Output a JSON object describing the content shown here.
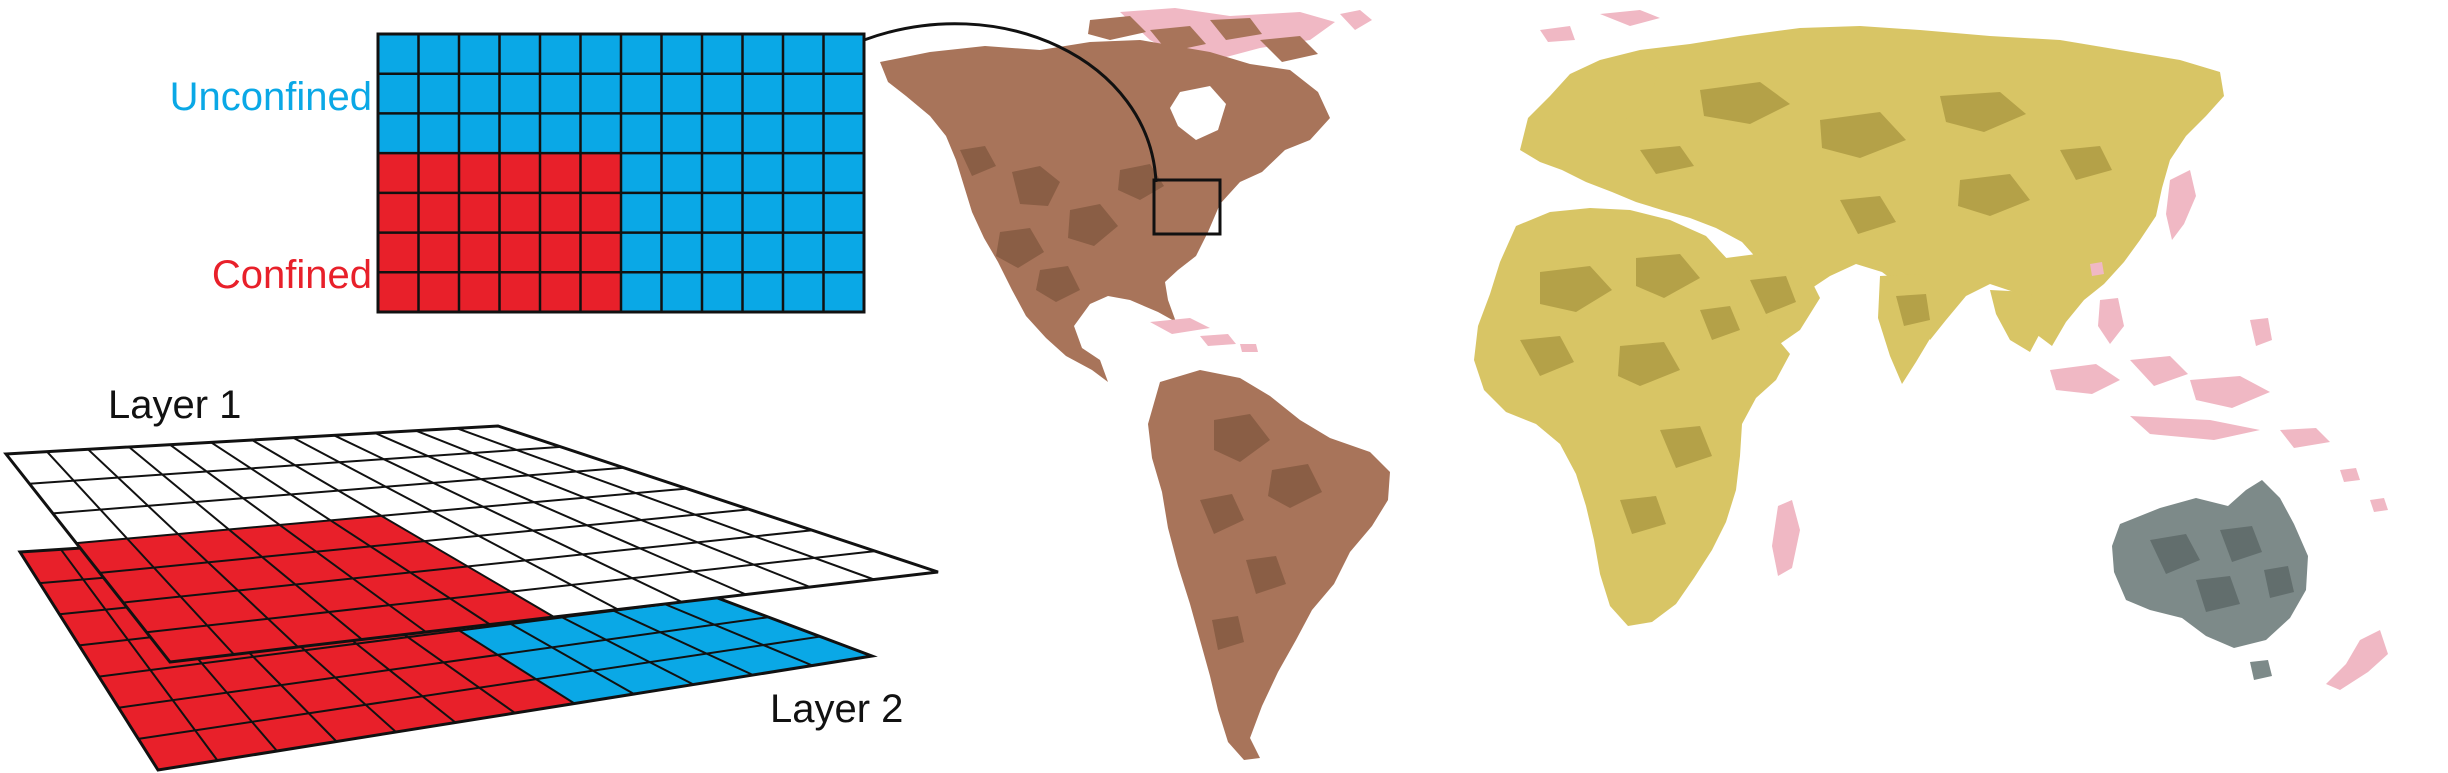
{
  "labels": {
    "unconfined": "Unconfined",
    "confined": "Confined",
    "layer1": "Layer 1",
    "layer2": "Layer 2"
  },
  "colors": {
    "unconfined": "#0aa8e6",
    "confined": "#e8202a",
    "americas": "#a8745a",
    "americas_dark": "#8a5e45",
    "afro_eurasia": "#d8c565",
    "afro_eurasia_dark": "#b4a148",
    "australia": "#7d8a89",
    "australia_dark": "#626e6d",
    "islands": "#f0b8c4",
    "grid_line": "#111111"
  },
  "grid": {
    "columns": 12,
    "rows": 7,
    "confined_columns": 6,
    "confined_rows": 4
  },
  "layers": {
    "columns": 12,
    "rows": 7,
    "layer1_red_columns": 6,
    "layer1_red_rows": 4,
    "layer2_red_columns": 7
  }
}
